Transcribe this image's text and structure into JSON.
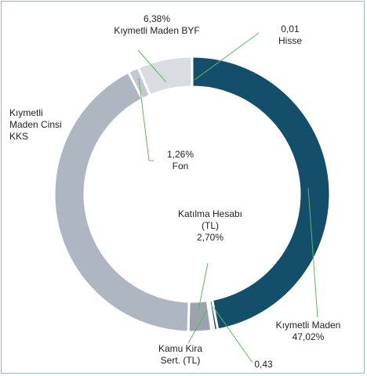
{
  "chart_data": {
    "type": "donut",
    "categories": [
      "Kıymetli Maden",
      null,
      "Kamu Kira Sert. (TL)",
      "Katılma Hesabı (TL)",
      "Kıymetli Maden Cinsi KKS",
      "Fon",
      "Kıymetli Maden BYF",
      "Hisse"
    ],
    "values": [
      47.02,
      0.43,
      0.3,
      2.7,
      41.9,
      1.26,
      6.38,
      0.01
    ],
    "value_labels": [
      "47,02%",
      "0,43",
      null,
      "2,70%",
      null,
      "1,26%",
      "6,38%",
      "0,01"
    ],
    "colors": [
      "#134f6b",
      "#1e4d68",
      "#6f7d8c",
      "#9ba4ae",
      "#aeb7c1",
      "#c2c8cf",
      "#d9dde1",
      "#e6e9ec"
    ]
  }
}
